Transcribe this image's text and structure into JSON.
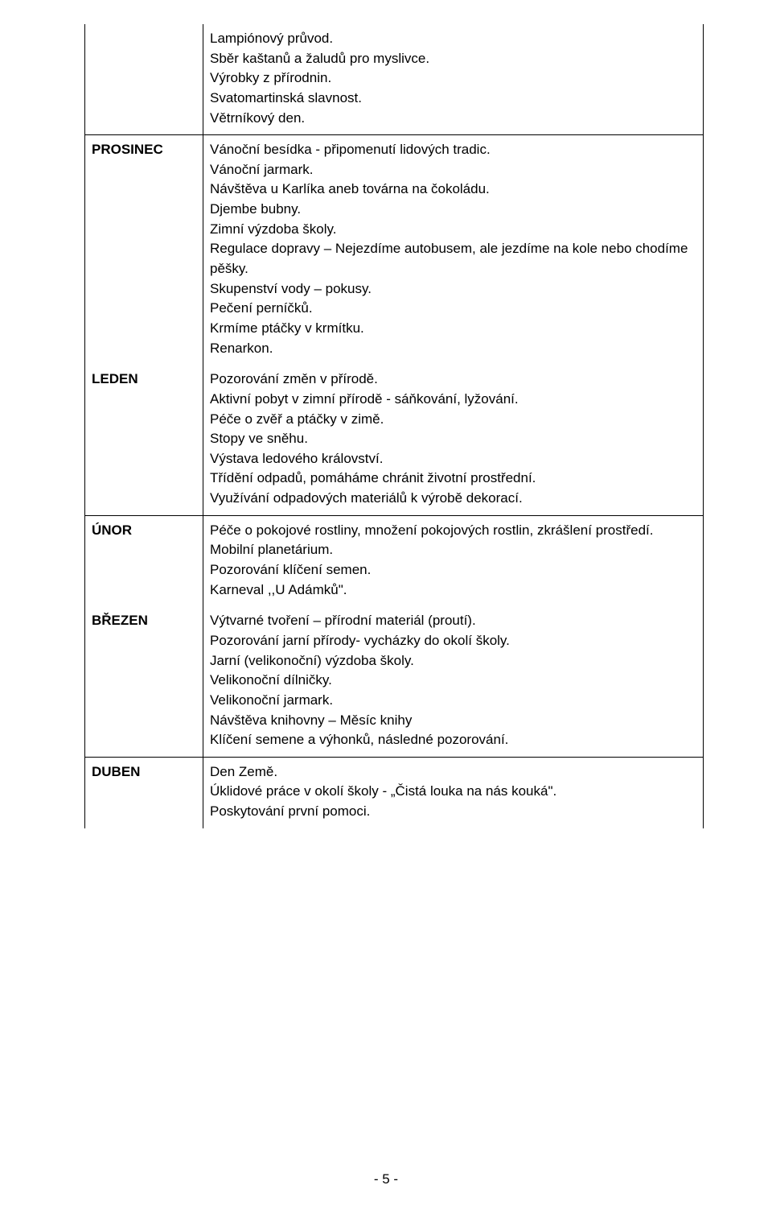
{
  "intro": [
    "Lampiónový průvod.",
    "Sběr kaštanů a žaludů pro myslivce.",
    "Výrobky z přírodnin.",
    "Svatomartinská slavnost.",
    "Větrníkový den."
  ],
  "block1": [
    {
      "month": "PROSINEC",
      "lines": [
        "Vánoční besídka - připomenutí lidových tradic.",
        "Vánoční jarmark.",
        "Návštěva u Karlíka aneb továrna na čokoládu.",
        "Djembe bubny.",
        "Zimní výzdoba školy.",
        "Regulace dopravy – Nejezdíme autobusem, ale jezdíme na kole nebo chodíme pěšky.",
        "Skupenství vody – pokusy.",
        "Pečení perníčků.",
        "Krmíme ptáčky v krmítku.",
        "Renarkon."
      ]
    },
    {
      "month": "LEDEN",
      "lines": [
        "Pozorování změn v přírodě.",
        "Aktivní pobyt v zimní přírodě - sáňkování, lyžování.",
        "Péče o zvěř a ptáčky v zimě.",
        "Stopy ve sněhu.",
        "Výstava ledového království.",
        "Třídění odpadů, pomáháme chránit životní prostřední.",
        "Využívání odpadových materiálů k výrobě dekorací."
      ]
    }
  ],
  "block2": [
    {
      "month": "ÚNOR",
      "lines": [
        "Péče o pokojové rostliny, množení pokojových rostlin, zkrášlení prostředí.",
        "Mobilní planetárium.",
        "Pozorování klíčení semen.",
        "Karneval ,,U Adámků\"."
      ]
    },
    {
      "month": "BŘEZEN",
      "lines": [
        "Výtvarné tvoření – přírodní materiál (proutí).",
        "Pozorování jarní přírody- vycházky do okolí školy.",
        "Jarní (velikonoční) výzdoba školy.",
        "Velikonoční dílničky.",
        "Velikonoční jarmark.",
        "Návštěva knihovny – Měsíc knihy",
        "Klíčení semene a výhonků, následné pozorování."
      ]
    }
  ],
  "block3": [
    {
      "month": "DUBEN",
      "lines": [
        "Den Země.",
        "Úklidové práce v okolí školy - „Čistá louka na nás kouká\".",
        "Poskytování první pomoci."
      ]
    }
  ],
  "pageNumber": "- 5 -"
}
